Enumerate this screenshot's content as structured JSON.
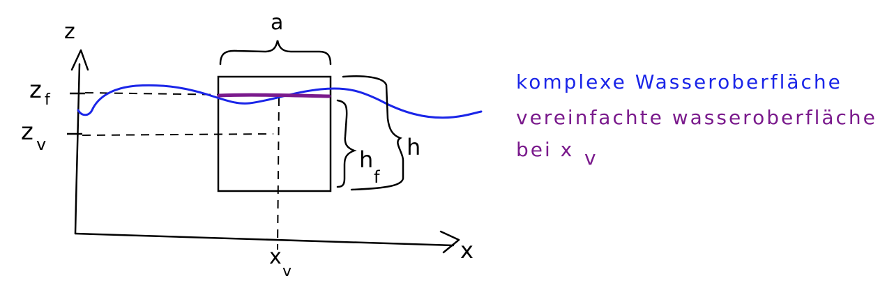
{
  "diagram": {
    "labels": {
      "z_axis": "z",
      "x_axis": "x",
      "z_f": "z",
      "z_f_sub": "f",
      "z_v": "z",
      "z_v_sub": "v",
      "width": "a",
      "h": "h",
      "h_f": "h",
      "h_f_sub": "f",
      "x_v": "x",
      "x_v_sub": "v"
    },
    "legend": {
      "complex": "komplexe Wasseroberfläche",
      "simplified_line1": "vereinfachte wasseroberfläche",
      "simplified_line2": "bei x",
      "simplified_line2_sub": "v"
    },
    "colors": {
      "complex": "#1a25e8",
      "simplified": "#7a1a8c",
      "ink": "#000000"
    }
  }
}
